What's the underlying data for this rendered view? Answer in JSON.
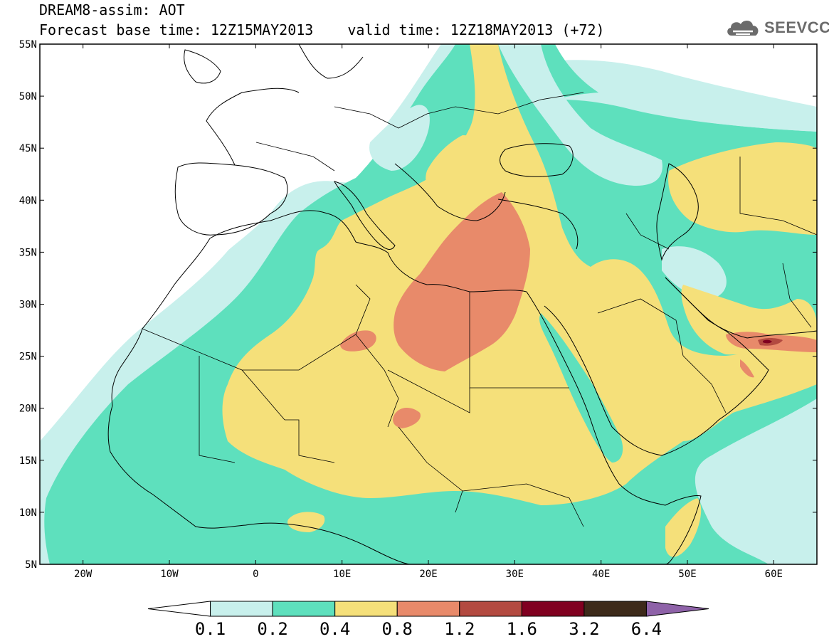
{
  "title": {
    "line1": "DREAM8-assim: AOT",
    "base_time": "Forecast base time: 12Z15MAY2013",
    "valid_time": "valid time: 12Z18MAY2013 (+72)"
  },
  "logo": {
    "text": "SEEVCCC",
    "icon": "cloud-logo-icon"
  },
  "map": {
    "lon_range": [
      -25,
      65
    ],
    "lat_range": [
      5,
      55
    ],
    "lat_ticks": [
      {
        "value": 55,
        "label": "55N"
      },
      {
        "value": 50,
        "label": "50N"
      },
      {
        "value": 45,
        "label": "45N"
      },
      {
        "value": 40,
        "label": "40N"
      },
      {
        "value": 35,
        "label": "35N"
      },
      {
        "value": 30,
        "label": "30N"
      },
      {
        "value": 25,
        "label": "25N"
      },
      {
        "value": 20,
        "label": "20N"
      },
      {
        "value": 15,
        "label": "15N"
      },
      {
        "value": 10,
        "label": "10N"
      },
      {
        "value": 5,
        "label": "5N"
      }
    ],
    "lon_ticks": [
      {
        "value": -20,
        "label": "20W"
      },
      {
        "value": -10,
        "label": "10W"
      },
      {
        "value": 0,
        "label": "0"
      },
      {
        "value": 10,
        "label": "10E"
      },
      {
        "value": 20,
        "label": "20E"
      },
      {
        "value": 30,
        "label": "30E"
      },
      {
        "value": 40,
        "label": "40E"
      },
      {
        "value": 50,
        "label": "50E"
      },
      {
        "value": 60,
        "label": "60E"
      }
    ]
  },
  "colorbar": {
    "levels": [
      "0.1",
      "0.2",
      "0.4",
      "0.8",
      "1.2",
      "1.6",
      "3.2",
      "6.4"
    ],
    "colors": [
      "#ffffff",
      "#c8f0ec",
      "#5ee0bd",
      "#f5e07a",
      "#e88a6a",
      "#b34a40",
      "#800020",
      "#3d2a1a",
      "#8e62a8"
    ]
  }
}
